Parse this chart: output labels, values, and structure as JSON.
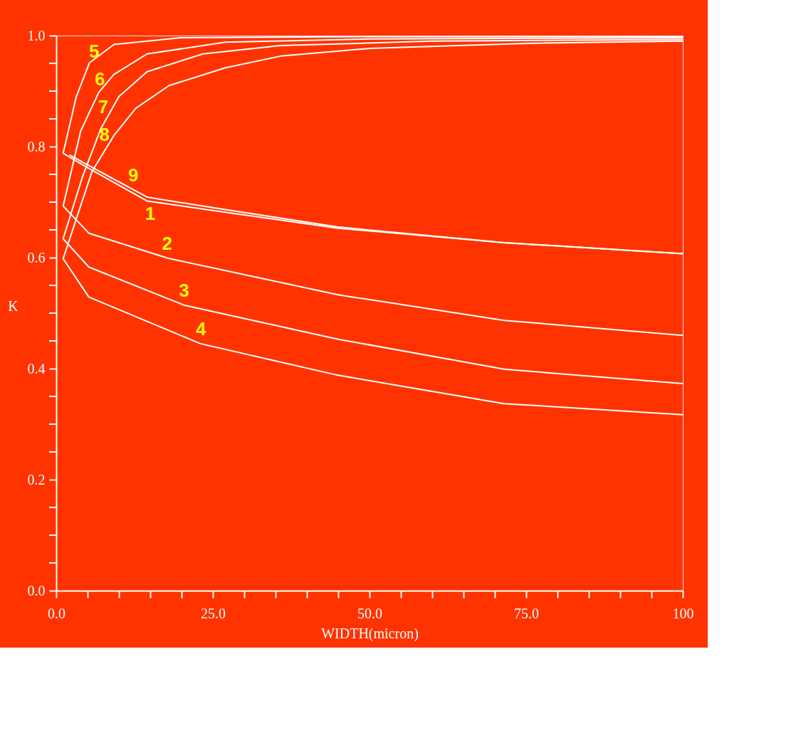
{
  "chart_data": {
    "type": "line",
    "xlabel": "WIDTH(micron)",
    "ylabel": "K",
    "xlim": [
      0,
      100
    ],
    "ylim": [
      0,
      1.0
    ],
    "xticks": [
      {
        "value": 0,
        "label": "0.0"
      },
      {
        "value": 5,
        "label": null
      },
      {
        "value": 10,
        "label": null
      },
      {
        "value": 15,
        "label": null
      },
      {
        "value": 20,
        "label": null
      },
      {
        "value": 25,
        "label": "25.0"
      },
      {
        "value": 30,
        "label": null
      },
      {
        "value": 35,
        "label": null
      },
      {
        "value": 40,
        "label": null
      },
      {
        "value": 45,
        "label": null
      },
      {
        "value": 50,
        "label": "50.0"
      },
      {
        "value": 55,
        "label": null
      },
      {
        "value": 60,
        "label": null
      },
      {
        "value": 65,
        "label": null
      },
      {
        "value": 70,
        "label": null
      },
      {
        "value": 75,
        "label": "75.0"
      },
      {
        "value": 80,
        "label": null
      },
      {
        "value": 85,
        "label": null
      },
      {
        "value": 90,
        "label": null
      },
      {
        "value": 95,
        "label": null
      },
      {
        "value": 100,
        "label": "100"
      }
    ],
    "yticks": [
      {
        "value": 0,
        "label": "0.0"
      },
      {
        "value": 0.05,
        "label": null
      },
      {
        "value": 0.1,
        "label": null
      },
      {
        "value": 0.15,
        "label": null
      },
      {
        "value": 0.2,
        "label": "0.2"
      },
      {
        "value": 0.25,
        "label": null
      },
      {
        "value": 0.3,
        "label": null
      },
      {
        "value": 0.35,
        "label": null
      },
      {
        "value": 0.4,
        "label": "0.4"
      },
      {
        "value": 0.45,
        "label": null
      },
      {
        "value": 0.5,
        "label": null
      },
      {
        "value": 0.55,
        "label": null
      },
      {
        "value": 0.6,
        "label": "0.6"
      },
      {
        "value": 0.65,
        "label": null
      },
      {
        "value": 0.7,
        "label": null
      },
      {
        "value": 0.75,
        "label": null
      },
      {
        "value": 0.8,
        "label": "0.8"
      },
      {
        "value": 0.85,
        "label": null
      },
      {
        "value": 0.9,
        "label": null
      },
      {
        "value": 0.95,
        "label": null
      },
      {
        "value": 1.0,
        "label": "1.0"
      }
    ],
    "grid": false,
    "legend": false,
    "marker": "none",
    "line_style": "solid",
    "series": [
      {
        "name": "5",
        "color": "#ffffff",
        "x": [
          1.1,
          3.2,
          5.3,
          9.2,
          19.9,
          50,
          100
        ],
        "values": [
          0.788,
          0.89,
          0.951,
          0.984,
          0.996,
          0.998,
          0.998
        ]
      },
      {
        "name": "6",
        "color": "#ffffff",
        "x": [
          1.1,
          3.9,
          6.8,
          9.2,
          14.5,
          27,
          50,
          100
        ],
        "values": [
          0.693,
          0.828,
          0.898,
          0.93,
          0.967,
          0.988,
          0.994,
          0.996
        ]
      },
      {
        "name": "7",
        "color": "#ffffff",
        "x": [
          1.1,
          4.2,
          7.1,
          10,
          14.5,
          23.4,
          35.8,
          60,
          100
        ],
        "values": [
          0.634,
          0.746,
          0.832,
          0.89,
          0.935,
          0.967,
          0.982,
          0.99,
          0.993
        ]
      },
      {
        "name": "8",
        "color": "#ffffff",
        "x": [
          1.1,
          5.7,
          9.2,
          12.7,
          18,
          27,
          35.8,
          50,
          75,
          100
        ],
        "values": [
          0.598,
          0.755,
          0.82,
          0.869,
          0.91,
          0.942,
          0.963,
          0.977,
          0.986,
          0.99
        ]
      },
      {
        "name": "9",
        "color": "#ffffff",
        "x": [
          2.1,
          5,
          14.5,
          25,
          45,
          71.5,
          100
        ],
        "values": [
          0.785,
          0.767,
          0.709,
          0.69,
          0.655,
          0.627,
          0.607
        ]
      },
      {
        "name": "1",
        "color": "#ffffff",
        "x": [
          1.1,
          5,
          14.5,
          25,
          45,
          71.5,
          100
        ],
        "values": [
          0.788,
          0.762,
          0.702,
          0.685,
          0.653,
          0.627,
          0.607
        ]
      },
      {
        "name": "2",
        "color": "#ffffff",
        "x": [
          1.1,
          5.2,
          17.8,
          45,
          71.5,
          100
        ],
        "values": [
          0.693,
          0.644,
          0.599,
          0.533,
          0.487,
          0.46
        ]
      },
      {
        "name": "3",
        "color": "#ffffff",
        "x": [
          1.1,
          5.2,
          20.5,
          45,
          71.5,
          100
        ],
        "values": [
          0.634,
          0.583,
          0.514,
          0.453,
          0.399,
          0.373
        ]
      },
      {
        "name": "4",
        "color": "#ffffff",
        "x": [
          1.1,
          5.2,
          23,
          45,
          71.5,
          100
        ],
        "values": [
          0.598,
          0.529,
          0.445,
          0.388,
          0.337,
          0.317
        ]
      }
    ]
  }
}
